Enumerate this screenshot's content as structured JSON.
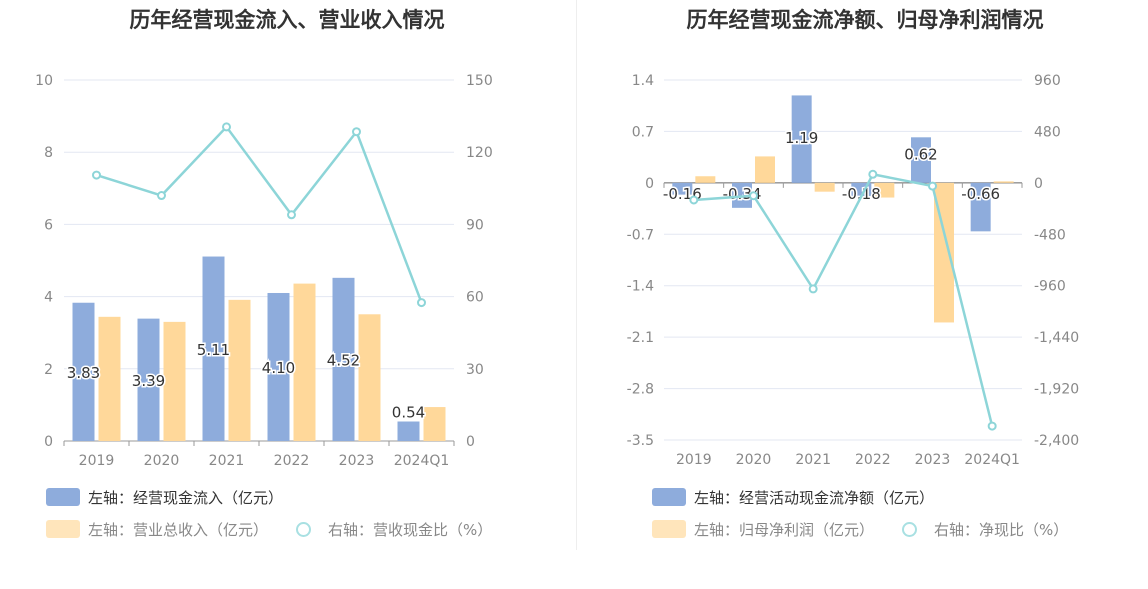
{
  "charts": [
    {
      "title": "历年经营现金流入、营业收入情况",
      "chart_data": {
        "type": "bar",
        "categories": [
          "2019",
          "2020",
          "2021",
          "2022",
          "2023",
          "2024Q1"
        ],
        "left_axis": {
          "ticks": [
            "0",
            "2",
            "4",
            "6",
            "8",
            "10"
          ],
          "min": 0,
          "max": 10
        },
        "right_axis": {
          "ticks": [
            "0",
            "30",
            "60",
            "90",
            "120",
            "150"
          ],
          "min": 0,
          "max": 150
        },
        "series": [
          {
            "name": "左轴：经营现金流入（亿元）",
            "kind": "bar",
            "axis": "left",
            "color": "#8eacdc",
            "values": [
              3.83,
              3.39,
              5.11,
              4.1,
              4.52,
              0.54
            ],
            "labels": [
              "3.83",
              "3.39",
              "5.11",
              "4.10",
              "4.52",
              "0.54"
            ]
          },
          {
            "name": "左轴：营业总收入（亿元）",
            "kind": "bar",
            "axis": "left",
            "color": "#ffd89a",
            "values": [
              3.44,
              3.3,
              3.91,
              4.36,
              3.51,
              0.94
            ]
          },
          {
            "name": "右轴：营收现金比（%）",
            "kind": "line",
            "axis": "right",
            "color": "#8dd5d8",
            "values": [
              110.5,
              102,
              130.5,
              94,
              128.5,
              57.5
            ]
          }
        ]
      }
    },
    {
      "title": "历年经营现金流净额、归母净利润情况",
      "chart_data": {
        "type": "bar",
        "categories": [
          "2019",
          "2020",
          "2021",
          "2022",
          "2023",
          "2024Q1"
        ],
        "left_axis": {
          "ticks": [
            "-3.5",
            "-2.8",
            "-2.1",
            "-1.4",
            "-0.7",
            "0",
            "0.7",
            "1.4"
          ],
          "min": -3.5,
          "max": 1.4
        },
        "right_axis": {
          "ticks": [
            "-2,400",
            "-1,920",
            "-1,440",
            "-960",
            "-480",
            "0",
            "480",
            "960"
          ],
          "min": -2400,
          "max": 960
        },
        "series": [
          {
            "name": "左轴：经营活动现金流净额（亿元）",
            "kind": "bar",
            "axis": "left",
            "color": "#8eacdc",
            "values": [
              -0.16,
              -0.34,
              1.19,
              -0.18,
              0.62,
              -0.66
            ],
            "labels": [
              "-0.16",
              "-0.34",
              "1.19",
              "-0.18",
              "0.62",
              "-0.66"
            ]
          },
          {
            "name": "左轴：归母净利润（亿元）",
            "kind": "bar",
            "axis": "left",
            "color": "#ffd89a",
            "values": [
              0.09,
              0.36,
              -0.12,
              -0.2,
              -1.9,
              0.02
            ]
          },
          {
            "name": "右轴：净现比（%）",
            "kind": "line",
            "axis": "right",
            "color": "#8dd5d8",
            "values": [
              -160,
              -120,
              -990,
              80,
              -30,
              -2270
            ]
          }
        ]
      }
    }
  ]
}
